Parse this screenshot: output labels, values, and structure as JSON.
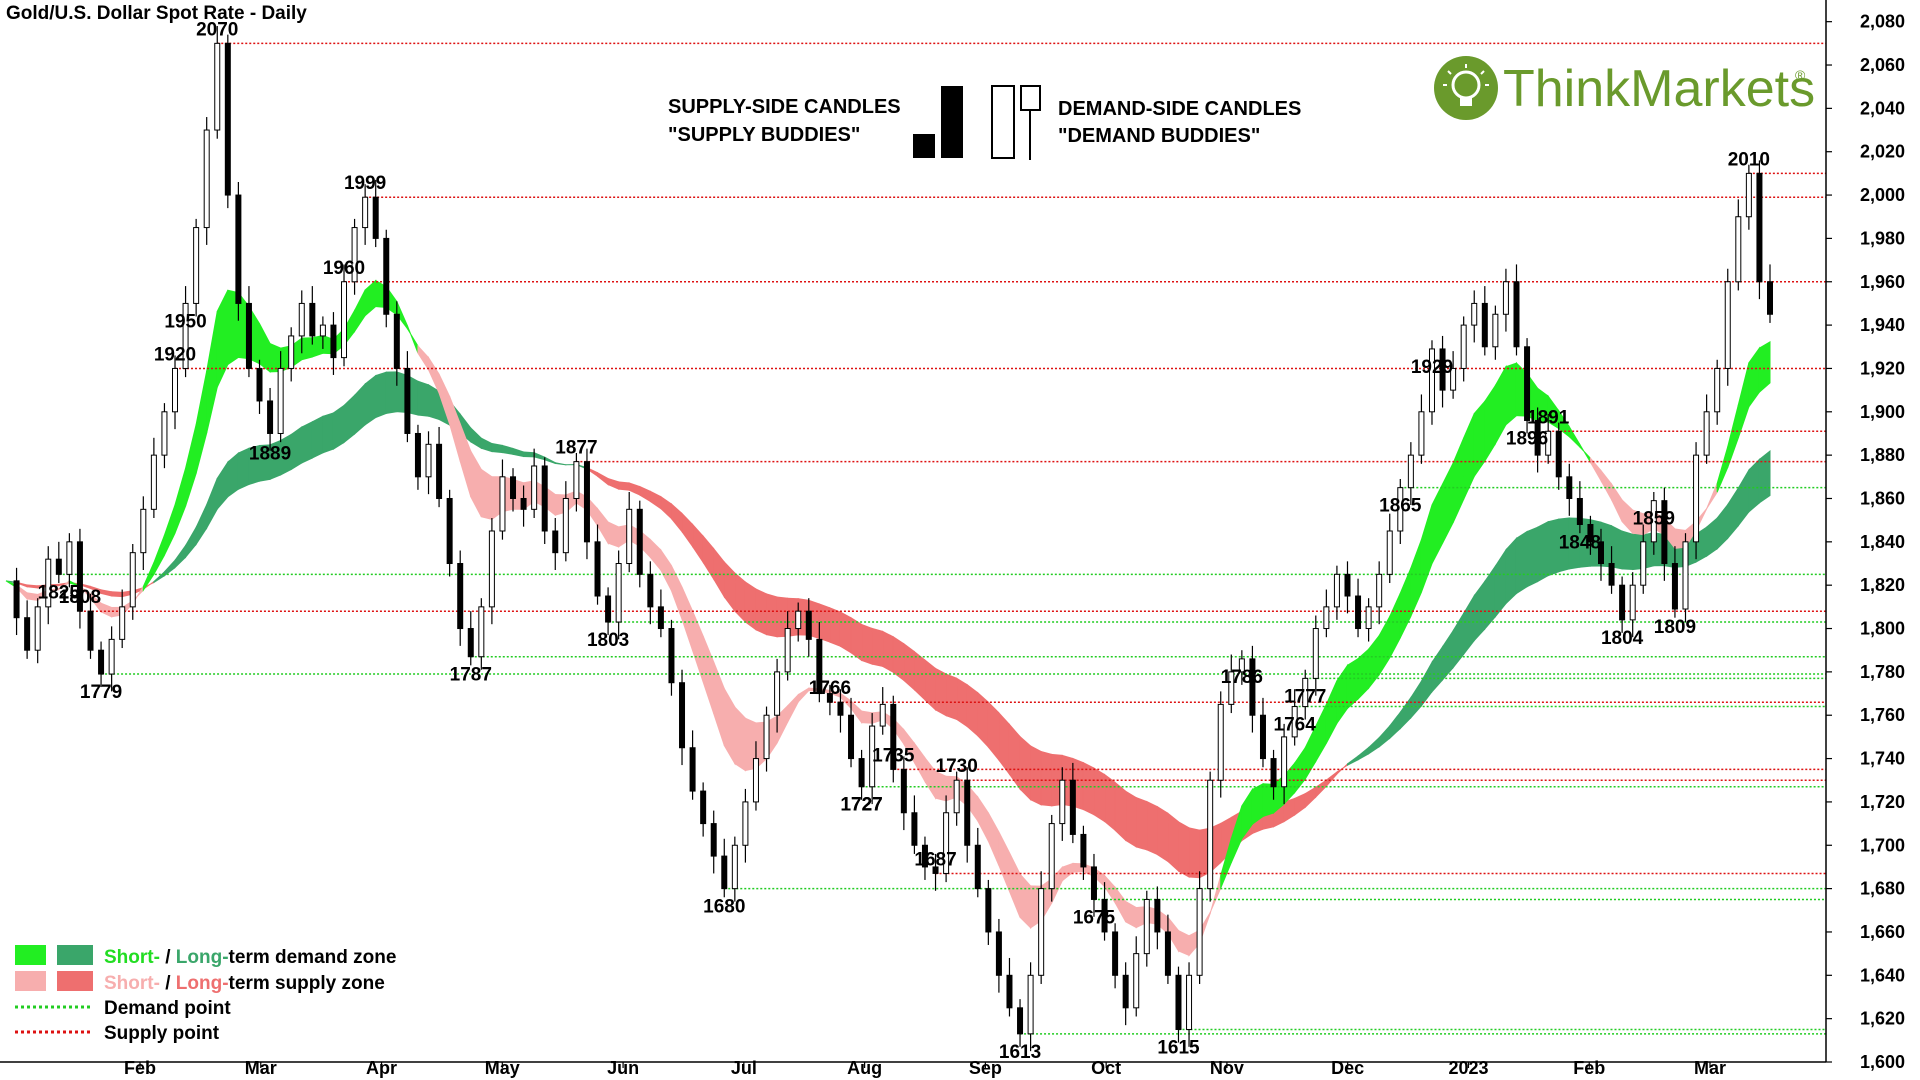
{
  "chart_data": {
    "type": "candlestick",
    "title": "Gold/U.S. Dollar Spot Rate - Daily",
    "ylim": [
      1600,
      2090
    ],
    "y_ticks": [
      "1,600",
      "1,620",
      "1,640",
      "1,660",
      "1,680",
      "1,700",
      "1,720",
      "1,740",
      "1,760",
      "1,780",
      "1,800",
      "1,820",
      "1,840",
      "1,860",
      "1,880",
      "1,900",
      "1,920",
      "1,940",
      "1,960",
      "1,980",
      "2,000",
      "2,020",
      "2,040",
      "2,060",
      "2,080"
    ],
    "x_ticks": [
      "Feb",
      "Mar",
      "Apr",
      "May",
      "Jun",
      "Jul",
      "Aug",
      "Sep",
      "Oct",
      "Nov",
      "Dec",
      "2023",
      "Feb",
      "Mar"
    ],
    "grid": false,
    "annotations": [
      "2070",
      "1999",
      "1889",
      "1920",
      "1779",
      "1877",
      "1803",
      "1787",
      "1808",
      "1766",
      "1727",
      "1735",
      "1687",
      "1680",
      "1730",
      "1675",
      "1613",
      "1615",
      "1786",
      "1727",
      "1764",
      "1777",
      "1825",
      "1865",
      "1929",
      "1950",
      "1960",
      "1896",
      "1891",
      "1848",
      "1859",
      "1804",
      "1809",
      "2010"
    ],
    "supply_levels": [
      2070,
      2010,
      1999,
      1960,
      1920,
      1891,
      1877,
      1808,
      1766,
      1735,
      1730,
      1687
    ],
    "demand_levels": [
      1865,
      1825,
      1803,
      1787,
      1779,
      1777,
      1764,
      1727,
      1680,
      1675,
      1615,
      1613
    ],
    "price_path": [
      1822,
      1805,
      1790,
      1810,
      1832,
      1825,
      1840,
      1808,
      1790,
      1779,
      1795,
      1810,
      1835,
      1855,
      1880,
      1900,
      1920,
      1950,
      1985,
      2030,
      2070,
      2000,
      1950,
      1920,
      1905,
      1890,
      1920,
      1935,
      1950,
      1935,
      1940,
      1925,
      1960,
      1985,
      1999,
      1980,
      1945,
      1920,
      1890,
      1870,
      1885,
      1860,
      1830,
      1800,
      1787,
      1810,
      1845,
      1870,
      1860,
      1855,
      1875,
      1845,
      1835,
      1860,
      1877,
      1840,
      1815,
      1803,
      1830,
      1855,
      1825,
      1810,
      1800,
      1775,
      1745,
      1725,
      1710,
      1695,
      1680,
      1700,
      1720,
      1740,
      1760,
      1780,
      1800,
      1808,
      1795,
      1770,
      1766,
      1760,
      1740,
      1727,
      1755,
      1765,
      1735,
      1715,
      1700,
      1690,
      1687,
      1715,
      1730,
      1700,
      1680,
      1660,
      1640,
      1625,
      1613,
      1640,
      1680,
      1710,
      1730,
      1705,
      1690,
      1675,
      1660,
      1640,
      1625,
      1650,
      1675,
      1660,
      1640,
      1615,
      1640,
      1680,
      1730,
      1765,
      1780,
      1786,
      1760,
      1740,
      1727,
      1750,
      1764,
      1777,
      1800,
      1810,
      1825,
      1815,
      1800,
      1810,
      1825,
      1845,
      1865,
      1880,
      1900,
      1929,
      1910,
      1920,
      1940,
      1950,
      1930,
      1945,
      1960,
      1930,
      1896,
      1880,
      1891,
      1870,
      1860,
      1848,
      1840,
      1830,
      1820,
      1804,
      1820,
      1840,
      1859,
      1830,
      1809,
      1840,
      1880,
      1900,
      1920,
      1960,
      1990,
      2010,
      1960,
      1945
    ],
    "legend": [
      {
        "short": "Short-",
        "sep": " / ",
        "long": "Long-",
        "rest": "term demand zone",
        "short_color": "#22dd22",
        "long_color": "#3aa66a"
      },
      {
        "short": "Short-",
        "sep": " / ",
        "long": "Long-",
        "rest": "term supply zone",
        "short_color": "#f7aeae",
        "long_color": "#ee6f6f"
      },
      {
        "text": "Demand point",
        "color": "#22cc22"
      },
      {
        "text": "Supply point",
        "color": "#dd1111"
      }
    ],
    "candle_legend": {
      "supply_line1": "SUPPLY-SIDE CANDLES",
      "supply_line2": "\"SUPPLY BUDDIES\"",
      "demand_line1": "DEMAND-SIDE CANDLES",
      "demand_line2": "\"DEMAND BUDDIES\""
    },
    "colors": {
      "short_demand": "#22ee22",
      "long_demand": "#3aa66a",
      "short_supply": "#f7aeae",
      "long_supply": "#ee6f6f",
      "mixed_band": "#f26d2c",
      "demand_line": "#22cc22",
      "supply_line": "#dd1111"
    }
  },
  "brand": {
    "name": "ThinkMarkets",
    "registered": "®",
    "color": "#6a9a2c",
    "icon": "lightbulb-icon"
  }
}
